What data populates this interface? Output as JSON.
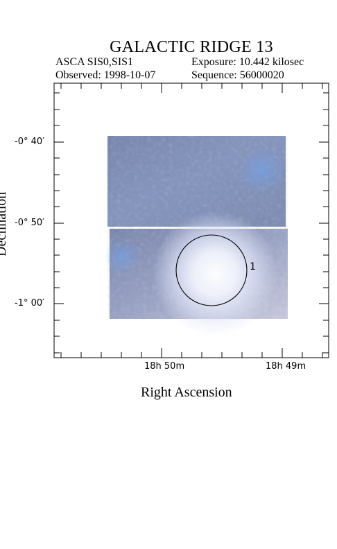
{
  "title": "GALACTIC RIDGE 13",
  "instrument": "ASCA SIS0,SIS1",
  "exposure": "Exposure: 10.442 kilosec",
  "observed": "Observed: 1998-10-07",
  "sequence": "Sequence: 56000020",
  "axes": {
    "y_ticks": [
      {
        "deg": "-0",
        "min": "40",
        "text": "-0° 40′"
      },
      {
        "deg": "-0",
        "min": "50",
        "text": "-0° 50′"
      },
      {
        "deg": "-1",
        "min": "00",
        "text": "-1° 00′"
      }
    ],
    "x_ticks": [
      {
        "text": "18h 50m"
      },
      {
        "text": "18h 49m"
      }
    ],
    "xlabel": "Right Ascension",
    "ylabel": "Declination"
  },
  "source": {
    "label": "1"
  },
  "colors": {
    "image_upper": "#7e8db5",
    "image_lower": "#8c97b8",
    "source_glow": "#f4f7ff"
  }
}
